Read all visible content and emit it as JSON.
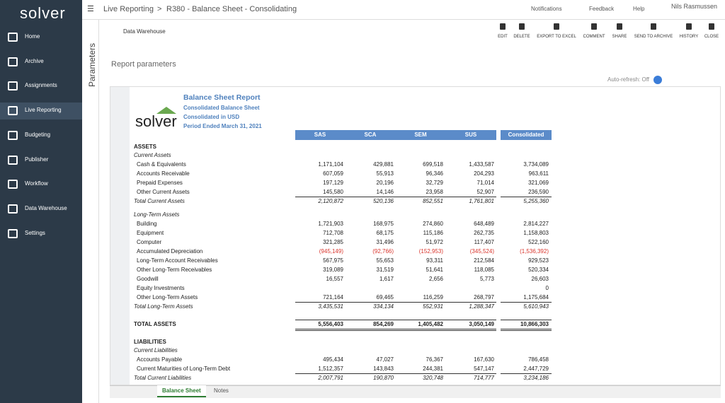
{
  "app": {
    "logo": "solver"
  },
  "sidebar": {
    "items": [
      "Home",
      "Archive",
      "Assignments",
      "Live Reporting",
      "Budgeting",
      "Publisher",
      "Workflow",
      "Data Warehouse",
      "Settings"
    ]
  },
  "topbar": {
    "breadcrumb": [
      "Live Reporting",
      "R380 - Balance Sheet - Consolidating"
    ],
    "separator": ">",
    "notifications": "Notifications",
    "feedback": "Feedback",
    "help": "Help",
    "user": "Nils Rasmussen"
  },
  "panel": {
    "label": "Parameters"
  },
  "toolbar": {
    "source": "Data Warehouse",
    "actions": [
      "EDIT",
      "DELETE",
      "EXPORT TO EXCEL",
      "COMMENT",
      "SHARE",
      "SEND TO ARCHIVE",
      "HISTORY",
      "CLOSE"
    ]
  },
  "report_parameters": "Report parameters",
  "auto_refresh": "Auto-refresh: Off",
  "report": {
    "logo": "solver",
    "title": "Balance Sheet Report",
    "subtitles": [
      "Consolidated Balance Sheet",
      "Consolidated in USD",
      "Period Ended March 31, 2021"
    ],
    "columns": [
      "SAS",
      "SCA",
      "SEM",
      "SUS",
      "Consolidated"
    ],
    "sections": [
      {
        "heading": "ASSETS",
        "groups": [
          {
            "title": "Current Assets",
            "rows": [
              {
                "label": "Cash & Equivalents",
                "values": [
                  "1,171,104",
                  "429,881",
                  "699,518",
                  "1,433,587",
                  "3,734,089"
                ]
              },
              {
                "label": "Accounts Receivable",
                "values": [
                  "607,059",
                  "55,913",
                  "96,346",
                  "204,293",
                  "963,611"
                ]
              },
              {
                "label": "Prepaid Expenses",
                "values": [
                  "197,129",
                  "20,196",
                  "32,729",
                  "71,014",
                  "321,069"
                ]
              },
              {
                "label": "Other Current Assets",
                "values": [
                  "145,580",
                  "14,146",
                  "23,958",
                  "52,907",
                  "236,590"
                ]
              }
            ],
            "total": {
              "label": "Total Current Assets",
              "values": [
                "2,120,872",
                "520,136",
                "852,551",
                "1,761,801",
                "5,255,360"
              ]
            }
          },
          {
            "title": "Long-Term Assets",
            "rows": [
              {
                "label": "Building",
                "values": [
                  "1,721,903",
                  "168,975",
                  "274,860",
                  "648,489",
                  "2,814,227"
                ]
              },
              {
                "label": "Equipment",
                "values": [
                  "712,708",
                  "68,175",
                  "115,186",
                  "262,735",
                  "1,158,803"
                ]
              },
              {
                "label": "Computer",
                "values": [
                  "321,285",
                  "31,496",
                  "51,972",
                  "117,407",
                  "522,160"
                ]
              },
              {
                "label": "Accumulated Depreciation",
                "values": [
                  "(945,149)",
                  "(92,766)",
                  "(152,953)",
                  "(345,524)",
                  "(1,536,392)"
                ]
              },
              {
                "label": "Long-Term Account Receivables",
                "values": [
                  "567,975",
                  "55,653",
                  "93,311",
                  "212,584",
                  "929,523"
                ]
              },
              {
                "label": "Other Long-Term Receivables",
                "values": [
                  "319,089",
                  "31,519",
                  "51,641",
                  "118,085",
                  "520,334"
                ]
              },
              {
                "label": "Goodwill",
                "values": [
                  "16,557",
                  "1,617",
                  "2,656",
                  "5,773",
                  "26,603"
                ]
              },
              {
                "label": "Equity Investments",
                "values": [
                  null,
                  null,
                  null,
                  null,
                  "0"
                ]
              },
              {
                "label": "Other Long-Term Assets",
                "values": [
                  "721,164",
                  "69,465",
                  "116,259",
                  "268,797",
                  "1,175,684"
                ]
              }
            ],
            "total": {
              "label": "Total Long-Term Assets",
              "values": [
                "3,435,531",
                "334,134",
                "552,931",
                "1,288,347",
                "5,610,943"
              ]
            }
          }
        ],
        "total": {
          "label": "TOTAL ASSETS",
          "values": [
            "5,556,403",
            "854,269",
            "1,405,482",
            "3,050,149",
            "10,866,303"
          ]
        }
      },
      {
        "heading": "LIABILITIES",
        "groups": [
          {
            "title": "Current Liabilities",
            "rows": [
              {
                "label": "Accounts Payable",
                "values": [
                  "495,434",
                  "47,027",
                  "76,367",
                  "167,630",
                  "786,458"
                ]
              },
              {
                "label": "Current Maturities of Long-Term Debt",
                "values": [
                  "1,512,357",
                  "143,843",
                  "244,381",
                  "547,147",
                  "2,447,729"
                ]
              }
            ],
            "total": {
              "label": "Total Current Liabilities",
              "values": [
                "2,007,791",
                "190,870",
                "320,748",
                "714,777",
                "3,234,186"
              ]
            }
          }
        ]
      }
    ]
  },
  "tabs": [
    "Balance Sheet",
    "Notes"
  ]
}
